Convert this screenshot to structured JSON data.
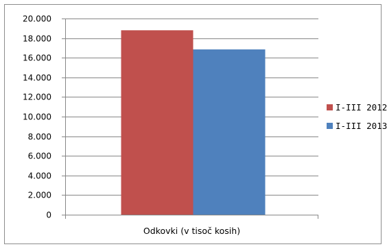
{
  "chart_data": {
    "type": "bar",
    "categories": [
      "Odkovki (v tisoč kosih)"
    ],
    "series": [
      {
        "name": "I-III 2012",
        "values": [
          18800
        ],
        "color": "#c0504d"
      },
      {
        "name": "I-III 2013",
        "values": [
          16850
        ],
        "color": "#4f81bd"
      }
    ],
    "ylim": [
      0,
      20000
    ],
    "yticks": [
      {
        "value": 0,
        "label": "0"
      },
      {
        "value": 2000,
        "label": "2.000"
      },
      {
        "value": 4000,
        "label": "4.000"
      },
      {
        "value": 6000,
        "label": "6.000"
      },
      {
        "value": 8000,
        "label": "8.000"
      },
      {
        "value": 10000,
        "label": "10.000"
      },
      {
        "value": 12000,
        "label": "12.000"
      },
      {
        "value": 14000,
        "label": "14.000"
      },
      {
        "value": 16000,
        "label": "16.000"
      },
      {
        "value": 18000,
        "label": "18.000"
      },
      {
        "value": 20000,
        "label": "20.000"
      }
    ],
    "grid": true,
    "legend_position": "right",
    "gridline_color": "#868686",
    "axis_color": "#868686"
  }
}
